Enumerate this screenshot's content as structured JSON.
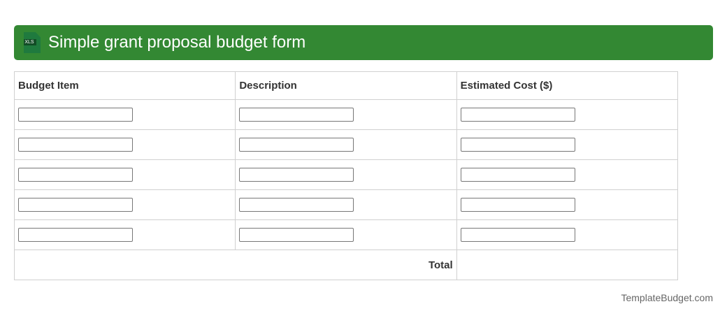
{
  "header": {
    "title": "Simple grant proposal budget form",
    "icon": "xls-file-icon",
    "icon_label": "XLS",
    "color": "#338833"
  },
  "table": {
    "columns": [
      "Budget Item",
      "Description",
      "Estimated Cost ($)"
    ],
    "rows": 5,
    "total_label": "Total"
  },
  "footer": "TemplateBudget.com"
}
